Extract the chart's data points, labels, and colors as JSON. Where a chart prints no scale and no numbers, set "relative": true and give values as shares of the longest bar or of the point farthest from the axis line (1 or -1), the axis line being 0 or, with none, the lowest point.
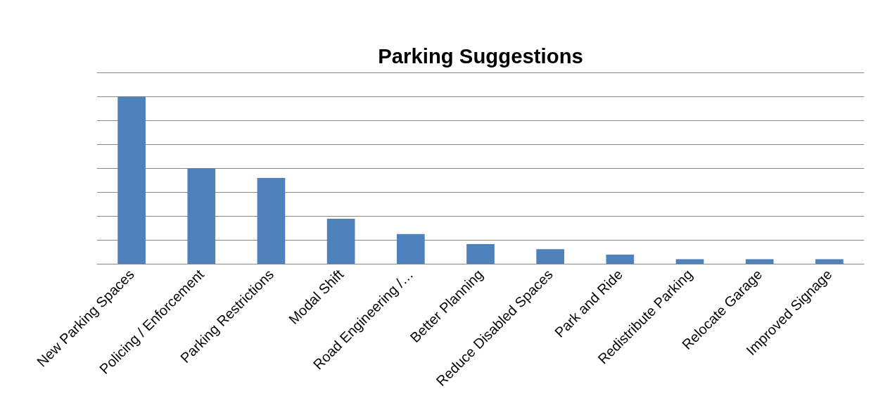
{
  "chart_data": {
    "type": "bar",
    "title": "Parking Suggestions",
    "relative": true,
    "categories": [
      "New Parking Spaces",
      "Policing / Enforcement",
      "Parking Restrictions",
      "Modal Shift",
      "Road Engineering /…",
      "Better Planning",
      "Reduce Disabled Spaces",
      "Park and Ride",
      "Redistribute Parking",
      "Relocate Garage",
      "Improved Signage"
    ],
    "values": [
      1,
      0.571,
      0.514,
      0.271,
      0.179,
      0.12,
      0.089,
      0.057,
      0.029,
      0.029,
      0.029
    ],
    "color": "#4f81bd",
    "grid": "y"
  }
}
